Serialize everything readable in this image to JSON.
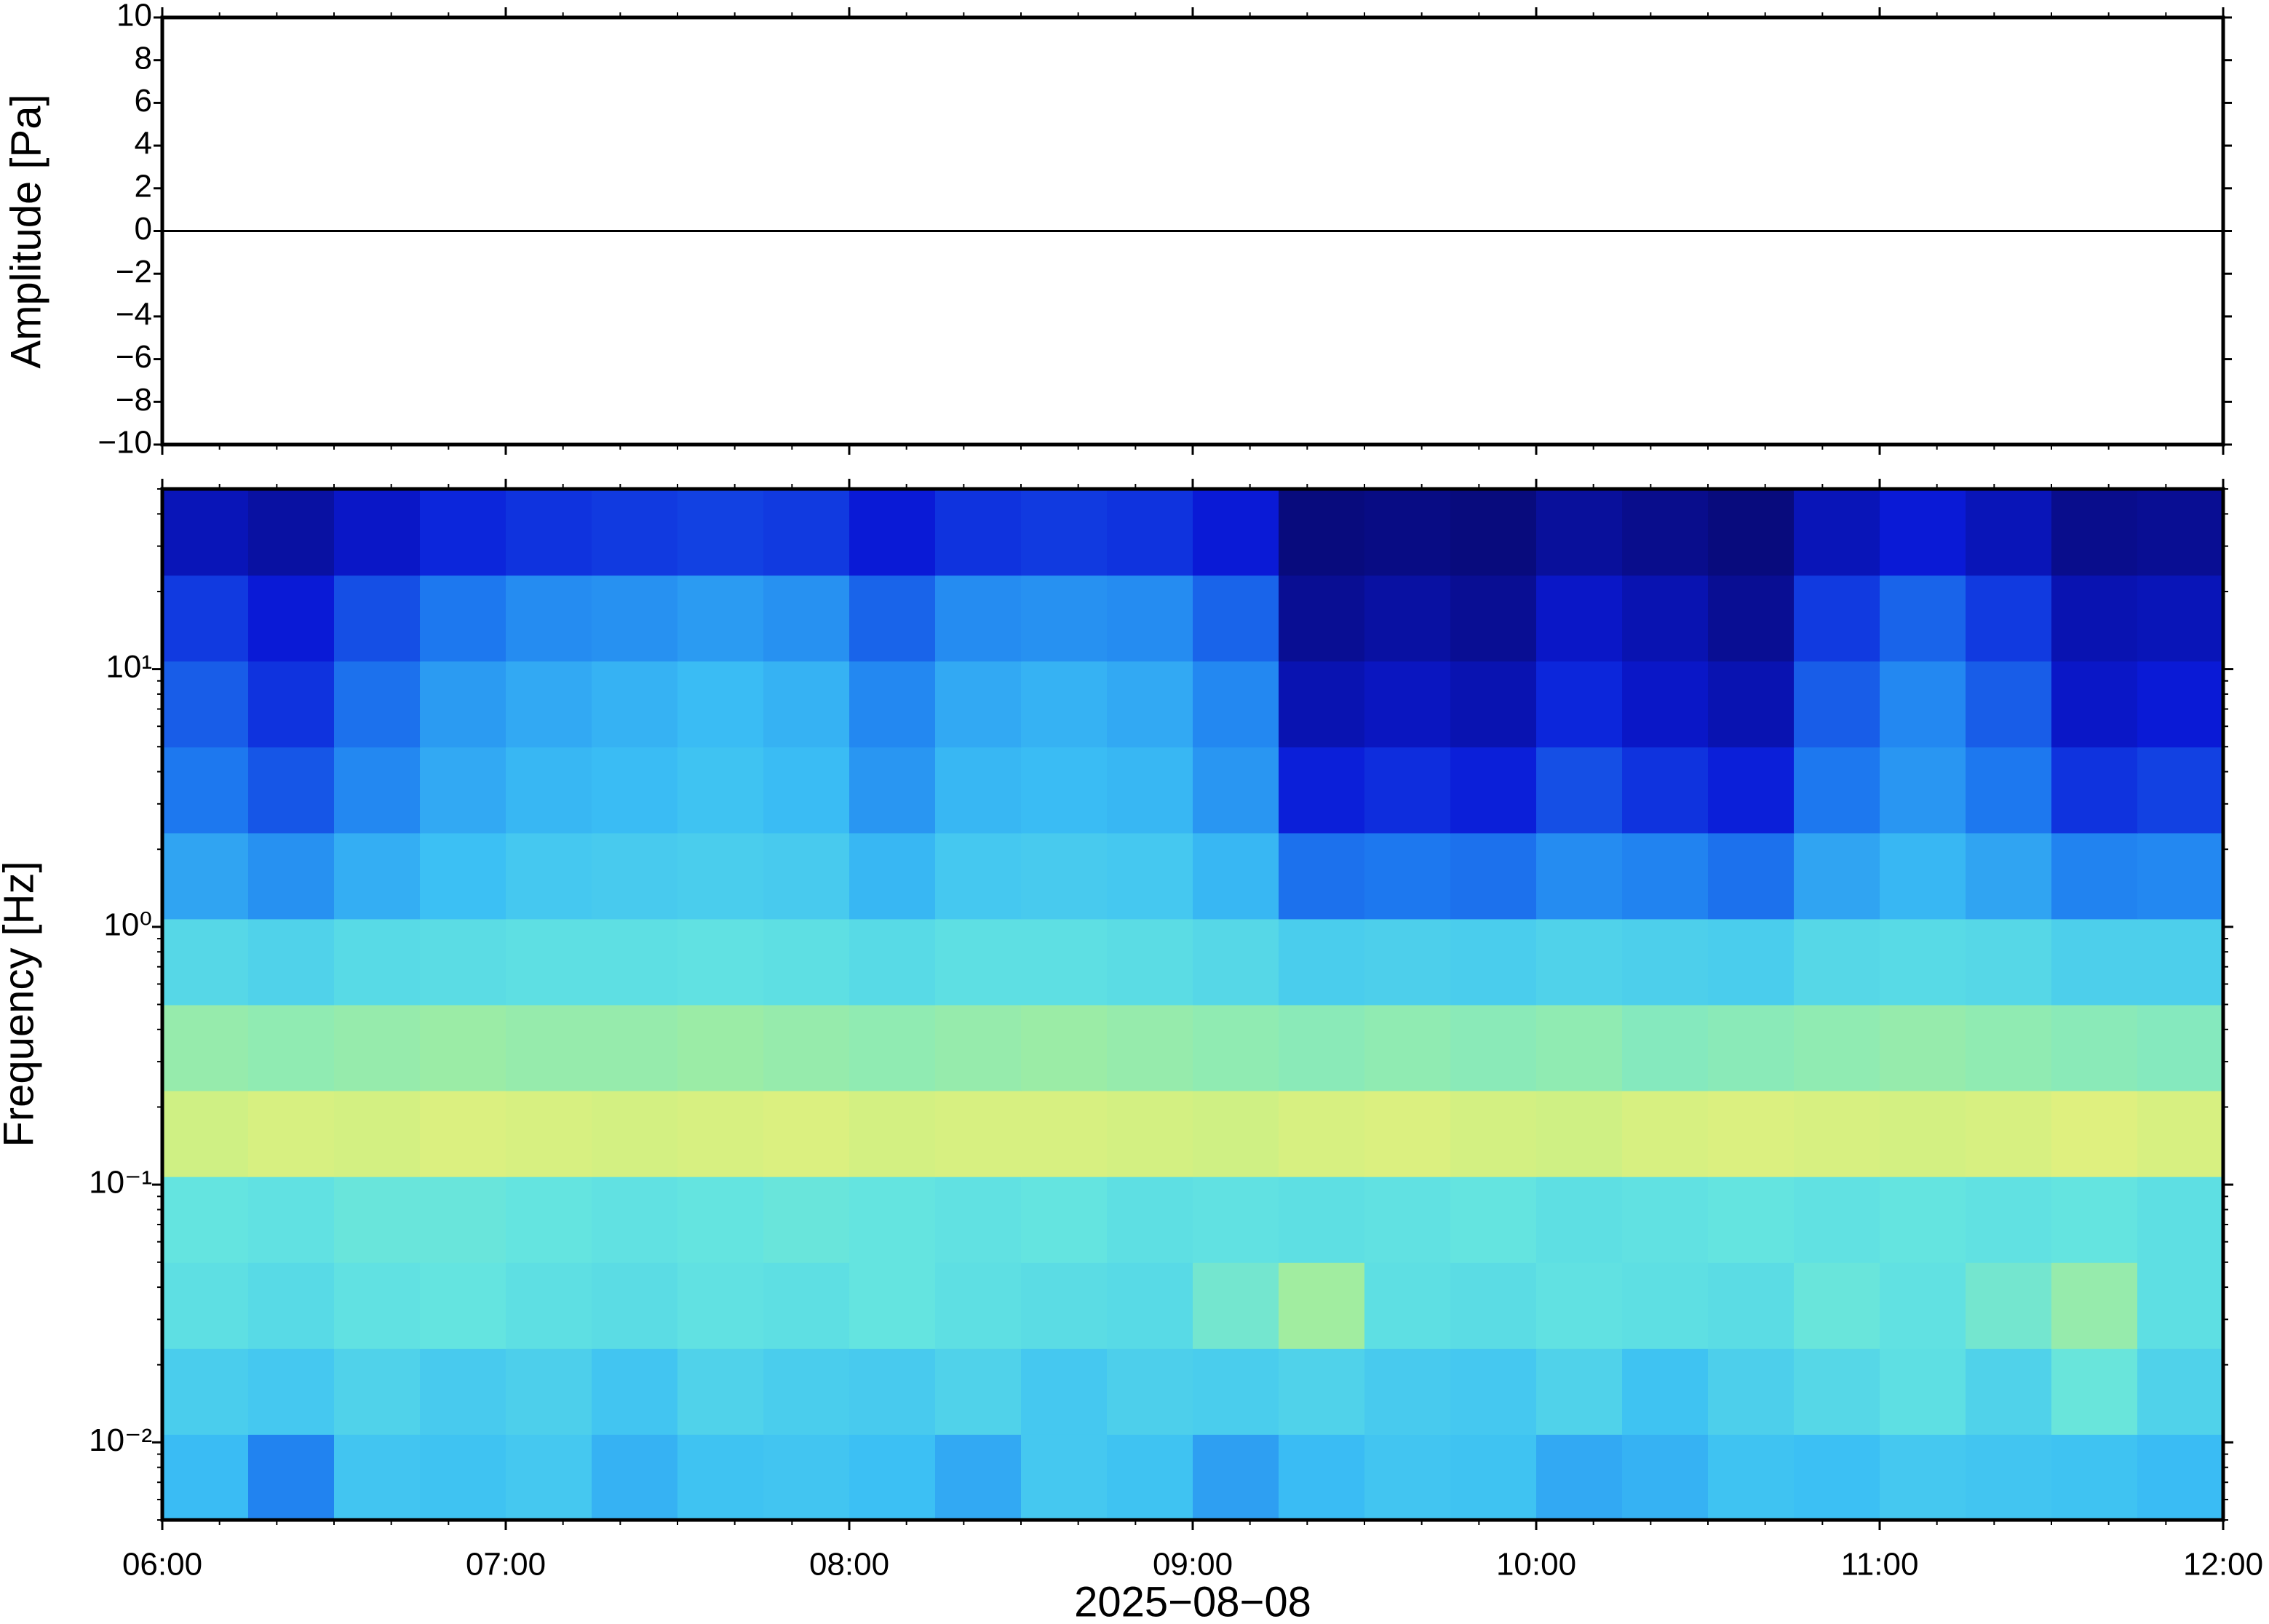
{
  "chart_data": [
    {
      "type": "line",
      "ylabel": "Amplitude [Pa]",
      "xlim": [
        6,
        12
      ],
      "ylim": [
        -10,
        10
      ],
      "yticks": [
        {
          "value": -10,
          "label": "−10"
        },
        {
          "value": -8,
          "label": "−8"
        },
        {
          "value": -6,
          "label": "−6"
        },
        {
          "value": -4,
          "label": "−4"
        },
        {
          "value": -2,
          "label": "−2"
        },
        0,
        2,
        4,
        6,
        8,
        10
      ],
      "x": [
        6,
        6.25,
        6.5,
        6.75,
        7,
        7.25,
        7.5,
        7.75,
        8,
        8.25,
        8.5,
        8.75,
        9,
        9.25,
        9.5,
        9.75,
        10,
        10.25,
        10.5,
        10.75,
        11,
        11.25,
        11.5,
        11.75,
        12
      ],
      "series": [
        {
          "color": "#000000",
          "values": [
            0,
            0,
            0,
            0,
            0,
            0,
            0,
            0,
            0,
            0,
            0,
            0,
            0,
            0,
            0,
            0,
            0,
            0,
            0,
            0,
            0,
            0,
            0,
            0,
            0
          ]
        }
      ]
    },
    {
      "type": "heatmap",
      "ylabel": "Frequency [Hz]",
      "xlabel": "2025−08−08",
      "log_y": true,
      "xlim": [
        6,
        12
      ],
      "ylim": [
        0.005,
        50
      ],
      "xticks": [
        {
          "value": 6,
          "label": "06:00"
        },
        {
          "value": 7,
          "label": "07:00"
        },
        {
          "value": 8,
          "label": "08:00"
        },
        {
          "value": 9,
          "label": "09:00"
        },
        {
          "value": 10,
          "label": "10:00"
        },
        {
          "value": 11,
          "label": "11:00"
        },
        {
          "value": 12,
          "label": "12:00"
        }
      ],
      "yticks": [
        {
          "value": 0.01,
          "label": "10⁻²"
        },
        {
          "value": 0.1,
          "label": "10⁻¹"
        },
        {
          "value": 1,
          "label": "10⁰"
        },
        {
          "value": 10,
          "label": "10¹"
        }
      ],
      "colormap": [
        "#08086e",
        "#0a1ad8",
        "#1e7cf0",
        "#3cc0f4",
        "#64e4e0",
        "#b4f08c",
        "#eef07a",
        "#f8b450"
      ],
      "z": [
        [
          0.42,
          0.3,
          0.45,
          0.44,
          0.46,
          0.4,
          0.44,
          0.45,
          0.43,
          0.38,
          0.46,
          0.44,
          0.36,
          0.42,
          0.45,
          0.44,
          0.38,
          0.4,
          0.44,
          0.43,
          0.46,
          0.45,
          0.44,
          0.42
        ],
        [
          0.48,
          0.46,
          0.5,
          0.47,
          0.49,
          0.45,
          0.5,
          0.48,
          0.47,
          0.5,
          0.46,
          0.49,
          0.48,
          0.5,
          0.47,
          0.46,
          0.5,
          0.44,
          0.49,
          0.52,
          0.55,
          0.5,
          0.58,
          0.5
        ],
        [
          0.55,
          0.53,
          0.56,
          0.57,
          0.55,
          0.54,
          0.56,
          0.55,
          0.57,
          0.55,
          0.54,
          0.53,
          0.6,
          0.68,
          0.55,
          0.54,
          0.56,
          0.55,
          0.54,
          0.58,
          0.56,
          0.6,
          0.66,
          0.55
        ],
        [
          0.57,
          0.56,
          0.58,
          0.58,
          0.57,
          0.56,
          0.57,
          0.58,
          0.57,
          0.56,
          0.57,
          0.55,
          0.56,
          0.55,
          0.56,
          0.57,
          0.55,
          0.56,
          0.57,
          0.56,
          0.57,
          0.56,
          0.57,
          0.55
        ],
        [
          0.78,
          0.8,
          0.79,
          0.81,
          0.8,
          0.79,
          0.8,
          0.81,
          0.79,
          0.8,
          0.8,
          0.79,
          0.78,
          0.8,
          0.81,
          0.79,
          0.78,
          0.8,
          0.81,
          0.8,
          0.79,
          0.8,
          0.82,
          0.8
        ],
        [
          0.66,
          0.65,
          0.66,
          0.67,
          0.66,
          0.66,
          0.67,
          0.66,
          0.65,
          0.66,
          0.67,
          0.66,
          0.65,
          0.64,
          0.65,
          0.64,
          0.65,
          0.63,
          0.64,
          0.65,
          0.66,
          0.65,
          0.64,
          0.63
        ],
        [
          0.52,
          0.5,
          0.53,
          0.54,
          0.55,
          0.55,
          0.56,
          0.55,
          0.53,
          0.55,
          0.55,
          0.54,
          0.52,
          0.48,
          0.49,
          0.48,
          0.5,
          0.49,
          0.48,
          0.52,
          0.53,
          0.52,
          0.49,
          0.49
        ],
        [
          0.37,
          0.33,
          0.39,
          0.43,
          0.46,
          0.47,
          0.48,
          0.47,
          0.41,
          0.46,
          0.47,
          0.46,
          0.41,
          0.27,
          0.28,
          0.27,
          0.32,
          0.3,
          0.27,
          0.37,
          0.41,
          0.37,
          0.3,
          0.31
        ],
        [
          0.28,
          0.23,
          0.31,
          0.38,
          0.41,
          0.42,
          0.44,
          0.42,
          0.34,
          0.41,
          0.42,
          0.41,
          0.34,
          0.15,
          0.17,
          0.15,
          0.22,
          0.18,
          0.15,
          0.28,
          0.34,
          0.28,
          0.18,
          0.2
        ],
        [
          0.24,
          0.18,
          0.27,
          0.35,
          0.38,
          0.4,
          0.42,
          0.4,
          0.31,
          0.38,
          0.4,
          0.38,
          0.31,
          0.09,
          0.11,
          0.09,
          0.16,
          0.12,
          0.09,
          0.24,
          0.31,
          0.24,
          0.12,
          0.14
        ],
        [
          0.19,
          0.14,
          0.22,
          0.28,
          0.32,
          0.33,
          0.35,
          0.33,
          0.25,
          0.32,
          0.33,
          0.32,
          0.25,
          0.05,
          0.07,
          0.05,
          0.12,
          0.09,
          0.05,
          0.19,
          0.25,
          0.19,
          0.09,
          0.1
        ],
        [
          0.1,
          0.07,
          0.12,
          0.16,
          0.18,
          0.19,
          0.2,
          0.19,
          0.14,
          0.18,
          0.19,
          0.18,
          0.14,
          0.02,
          0.03,
          0.02,
          0.06,
          0.04,
          0.02,
          0.1,
          0.14,
          0.1,
          0.04,
          0.05
        ]
      ]
    }
  ]
}
